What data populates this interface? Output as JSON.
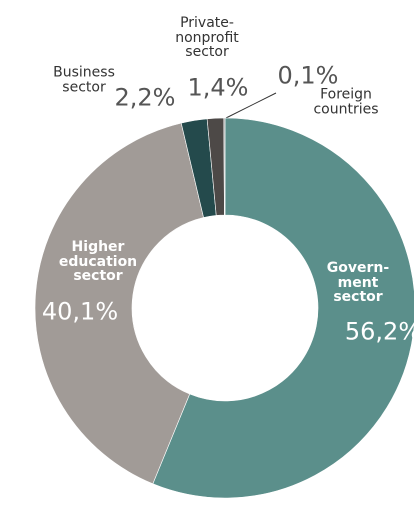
{
  "chart_data": {
    "type": "donut",
    "categories": [
      "Govern-\nment\nsector",
      "Higher\neducation\nsector",
      "Business\nsector",
      "Private-\nnonprofit\nsector",
      "Foreign countries"
    ],
    "values": [
      56.2,
      40.1,
      2.2,
      1.4,
      0.1
    ],
    "value_labels": [
      "56,2%",
      "40,1%",
      "2,2%",
      "1,4%",
      "0,1%"
    ],
    "colors": [
      "#5b8f8b",
      "#a19b97",
      "#244a4c",
      "#4d4947",
      "#9a9a9a"
    ]
  }
}
